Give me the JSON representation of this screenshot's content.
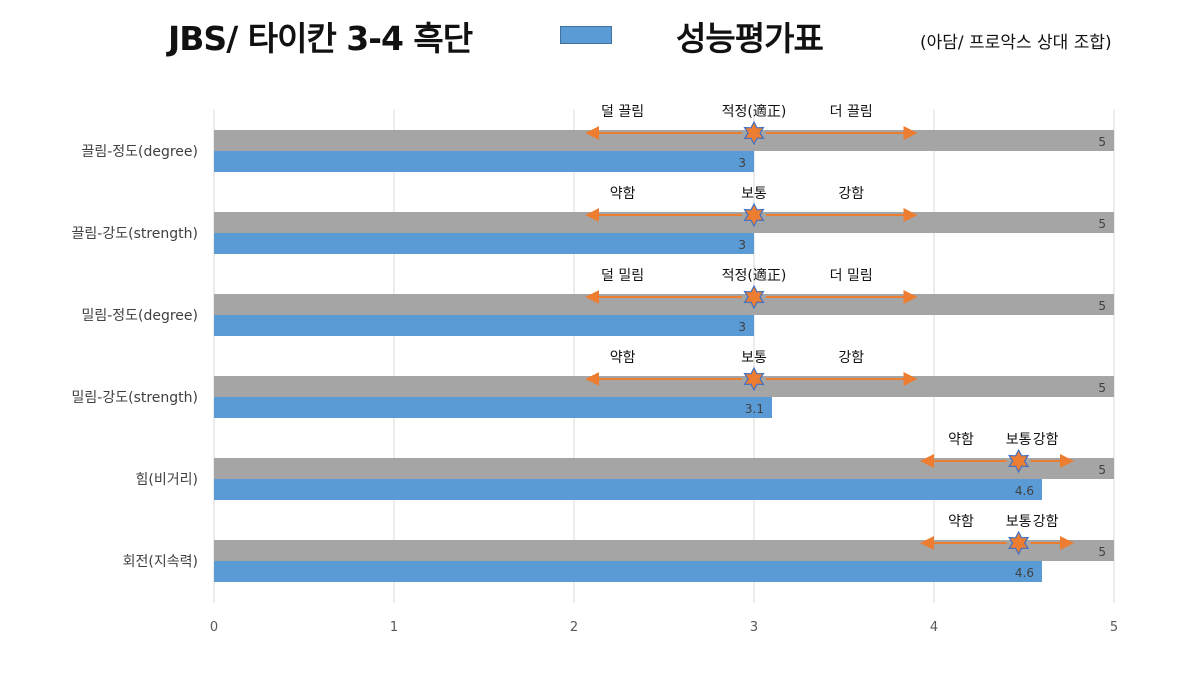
{
  "header": {
    "title": "JBS/ 타이칸 3-4 흑단",
    "legend_label": "성능평가표",
    "subtitle": "(아담/ 프로악스 상대 조합)"
  },
  "colors": {
    "primary": "#5b9bd5",
    "secondary": "#a5a5a5",
    "arrow": "#ed7d31",
    "star_fill": "#ed7d31",
    "star_stroke": "#4472c4",
    "grid": "#d9d9d9"
  },
  "chart_data": {
    "type": "bar",
    "orientation": "horizontal",
    "xlim": [
      0,
      5
    ],
    "x_ticks": [
      "0",
      "1",
      "2",
      "3",
      "4",
      "5"
    ],
    "grid": true,
    "categories": [
      "끌림-정도(degree)",
      "끌림-강도(strength)",
      "밀림-정도(degree)",
      "밀림-강도(strength)",
      "힘(비거리)",
      "회전(지속력)"
    ],
    "series": [
      {
        "values": [
          5,
          5,
          5,
          5,
          5,
          5
        ],
        "labels": [
          "5",
          "5",
          "5",
          "5",
          "5",
          "5"
        ],
        "color": "#a5a5a5"
      },
      {
        "values": [
          3,
          3,
          3,
          3.1,
          4.6,
          4.6
        ],
        "labels": [
          "3",
          "3",
          "3",
          "3.1",
          "4.6",
          "4.6"
        ],
        "color": "#5b9bd5"
      }
    ],
    "annotations": [
      {
        "left_label": "덜 끌림",
        "mid_label": "적정(適正)",
        "right_label": "더 끌림",
        "center": 3,
        "arrow_from": 2.07,
        "arrow_to": 3.9
      },
      {
        "left_label": "약함",
        "mid_label": "보통",
        "right_label": "강함",
        "center": 3,
        "arrow_from": 2.07,
        "arrow_to": 3.9
      },
      {
        "left_label": "덜 밀림",
        "mid_label": "적정(適正)",
        "right_label": "더 밀림",
        "center": 3,
        "arrow_from": 2.07,
        "arrow_to": 3.9
      },
      {
        "left_label": "약함",
        "mid_label": "보통",
        "right_label": "강함",
        "center": 3,
        "arrow_from": 2.07,
        "arrow_to": 3.9
      },
      {
        "left_label": "약함",
        "mid_label": "보통",
        "right_label": "강함",
        "center": 4.47,
        "arrow_from": 3.93,
        "arrow_to": 4.77
      },
      {
        "left_label": "약함",
        "mid_label": "보통",
        "right_label": "강함",
        "center": 4.47,
        "arrow_from": 3.93,
        "arrow_to": 4.77
      }
    ]
  }
}
